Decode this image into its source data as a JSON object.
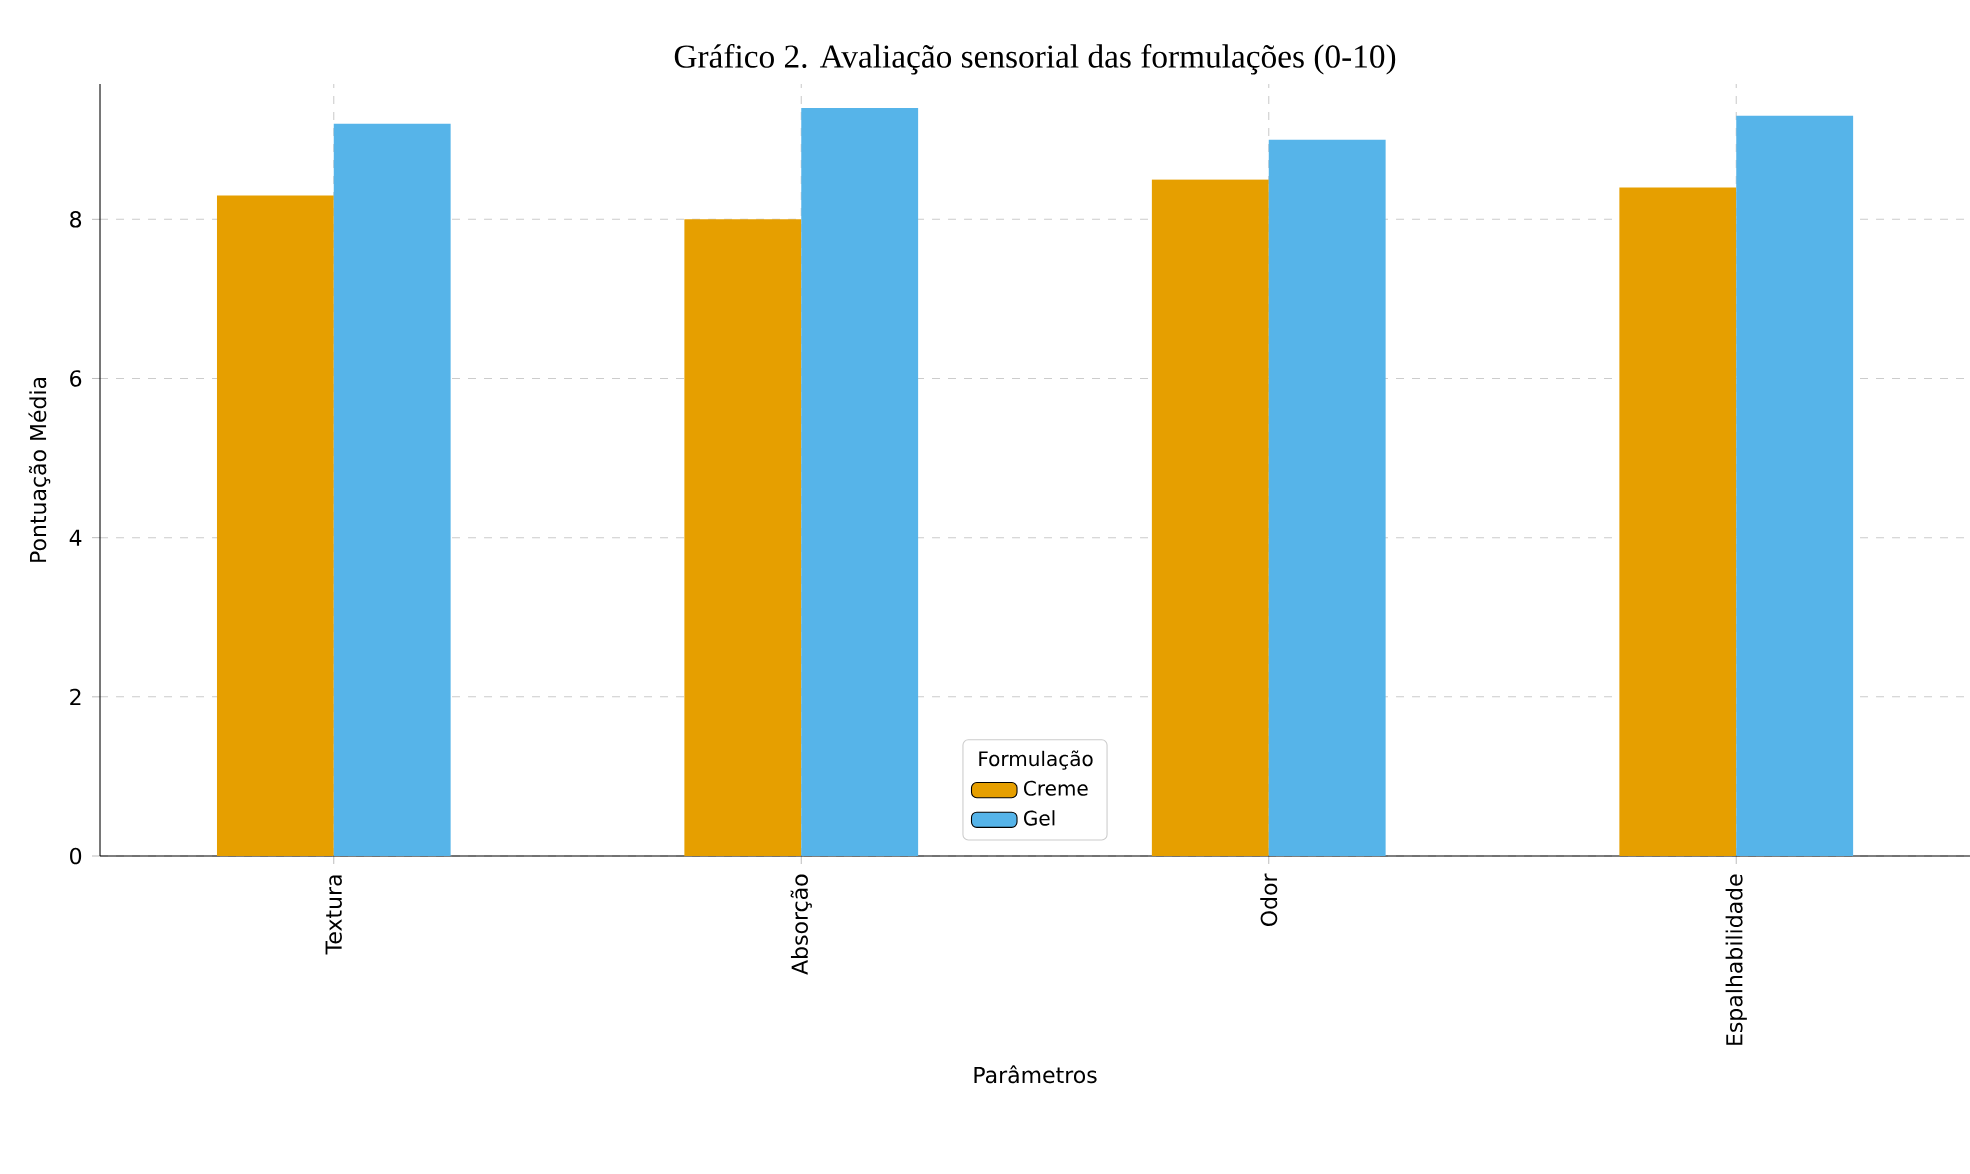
{
  "chart_data": {
    "type": "bar",
    "title": "Gráfico 2. Avaliação sensorial das formulações (0-10)",
    "xlabel": "Parâmetros",
    "ylabel": "Pontuação Média",
    "legend_title": "Formulação",
    "categories": [
      "Textura",
      "Absorção",
      "Odor",
      "Espalhabilidade"
    ],
    "series": [
      {
        "name": "Creme",
        "color": "#e69f00",
        "values": [
          8.3,
          8.0,
          8.5,
          8.4
        ]
      },
      {
        "name": "Gel",
        "color": "#56b4e9",
        "values": [
          9.2,
          9.4,
          9.0,
          9.3
        ]
      }
    ],
    "ylim": [
      0,
      9.7
    ],
    "yticks": [
      0,
      2,
      4,
      6,
      8
    ],
    "grid": true,
    "legend": "bottom"
  }
}
